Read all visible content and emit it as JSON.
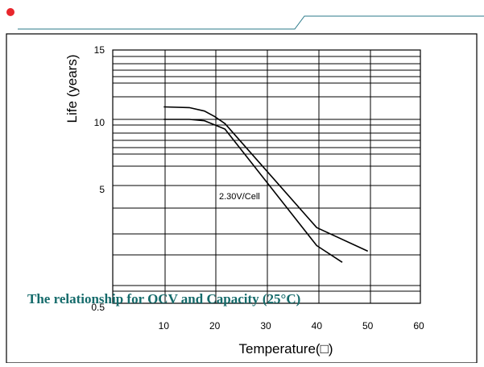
{
  "header": {
    "accent_color": "#e8262c",
    "rule_color": "#2b7a8a"
  },
  "chart_data": {
    "type": "line",
    "xlabel": "Temperature(□)",
    "ylabel": "Life (years)",
    "x_ticks": [
      10,
      20,
      30,
      40,
      50,
      60
    ],
    "y_ticks": [
      15,
      10,
      5,
      0.5
    ],
    "xlim": [
      0,
      60
    ],
    "grid": true,
    "series": [
      {
        "name": "2.30V/Cell",
        "band_upper": [
          [
            10,
            10.9
          ],
          [
            15,
            10.85
          ],
          [
            18,
            10.6
          ],
          [
            20,
            10.2
          ],
          [
            22,
            9.7
          ],
          [
            40,
            2.2
          ],
          [
            50,
            0.5
          ]
        ],
        "band_lower": [
          [
            10,
            10.0
          ],
          [
            15,
            10.0
          ],
          [
            18,
            9.9
          ],
          [
            20,
            9.6
          ],
          [
            22,
            9.3
          ],
          [
            40,
            0.9
          ],
          [
            45,
            -0.3
          ]
        ]
      }
    ],
    "annotations": [
      {
        "text": "2.30V/Cell",
        "x": 21,
        "y": 5
      }
    ]
  },
  "caption": {
    "text": "The relationship for OCV and Capacity (25°C)",
    "color": "#156b6b"
  }
}
